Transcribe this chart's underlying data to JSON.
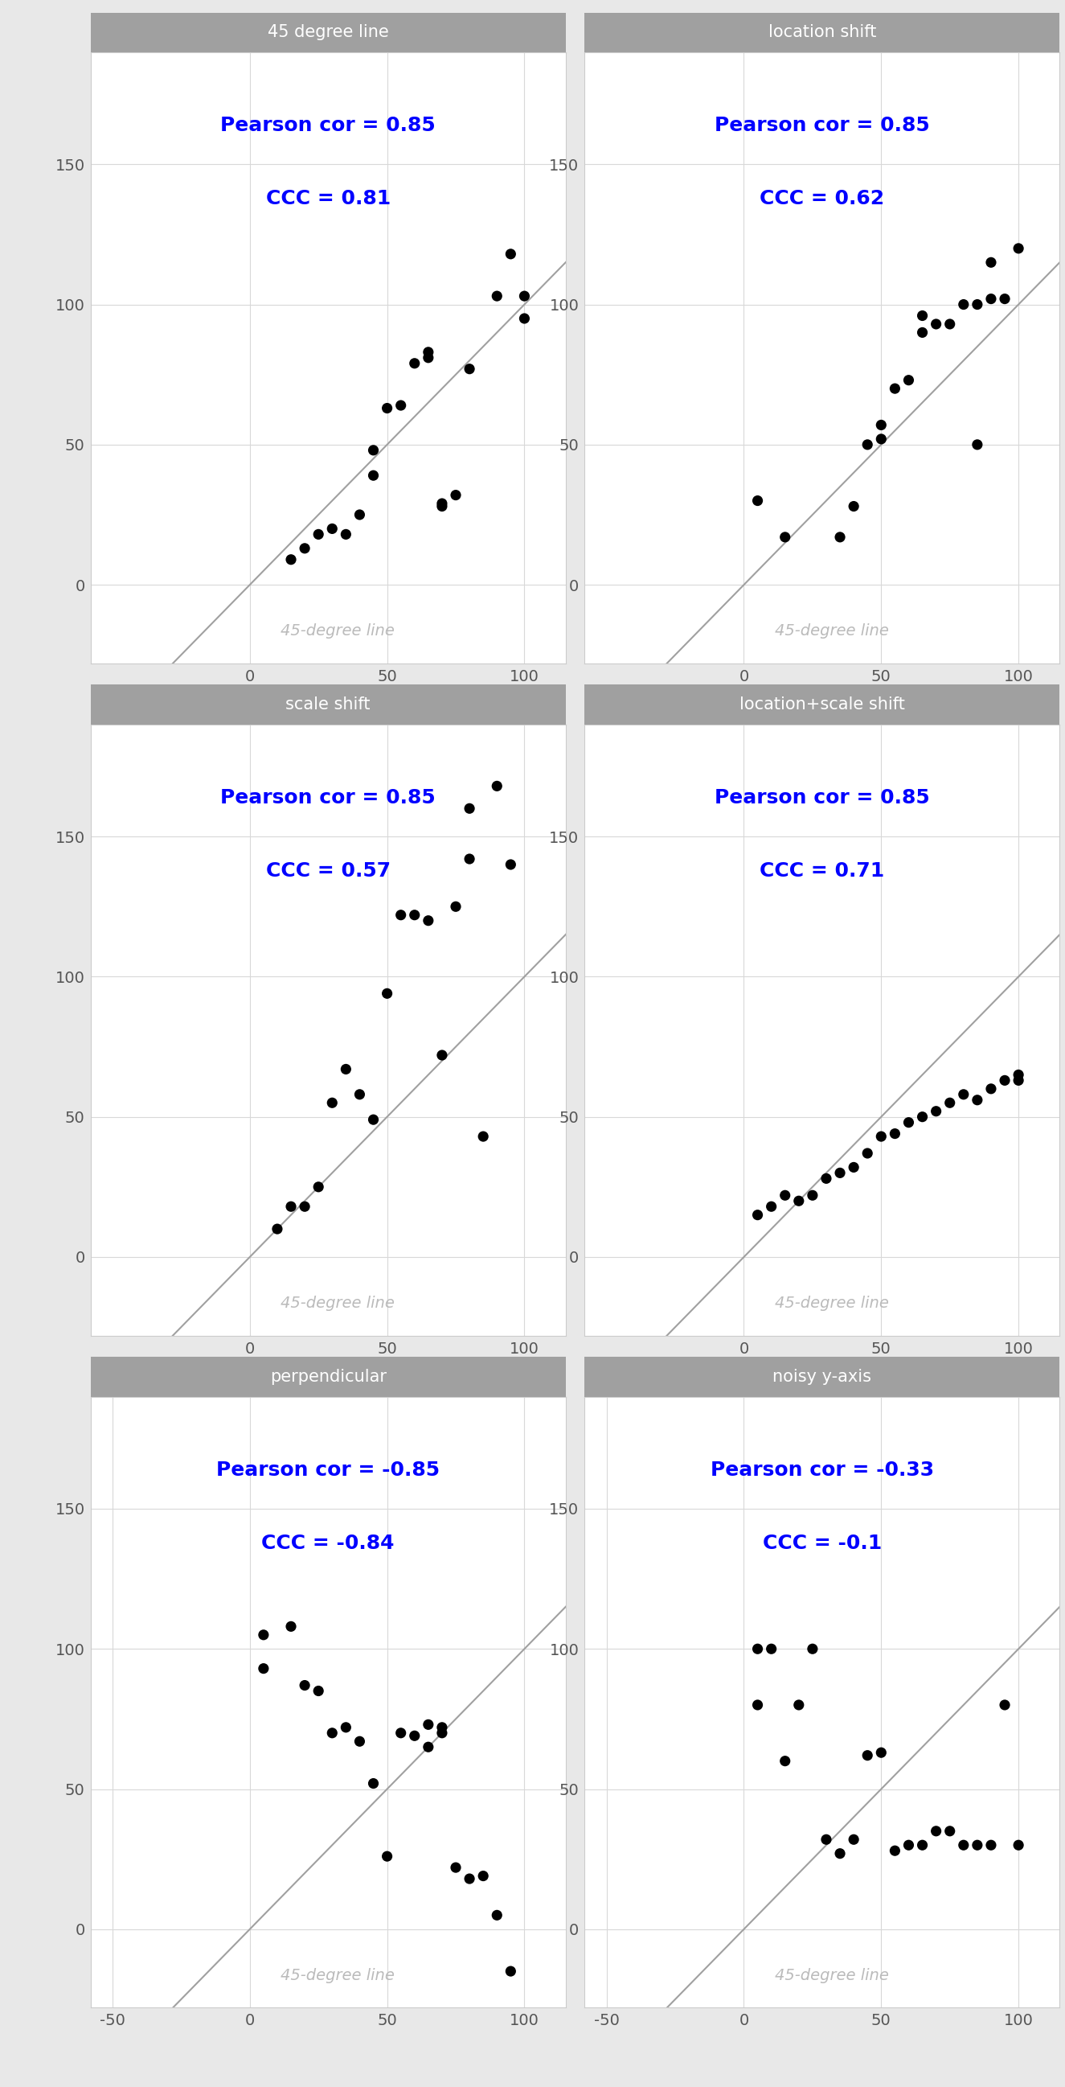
{
  "panels": [
    {
      "title": "45 degree line",
      "pearson": "Pearson cor = 0.85",
      "ccc": "CCC = 0.81",
      "x": [
        15,
        20,
        25,
        30,
        35,
        40,
        45,
        45,
        50,
        55,
        60,
        65,
        65,
        70,
        70,
        75,
        80,
        90,
        95,
        100,
        100
      ],
      "y": [
        9,
        13,
        18,
        20,
        18,
        25,
        48,
        39,
        63,
        64,
        79,
        81,
        83,
        28,
        29,
        32,
        77,
        103,
        118,
        103,
        95
      ],
      "row": 0
    },
    {
      "title": "location shift",
      "pearson": "Pearson cor = 0.85",
      "ccc": "CCC = 0.62",
      "x": [
        5,
        15,
        35,
        40,
        45,
        50,
        50,
        55,
        60,
        65,
        65,
        70,
        75,
        80,
        85,
        85,
        90,
        90,
        95,
        100
      ],
      "y": [
        30,
        17,
        17,
        28,
        50,
        57,
        52,
        70,
        73,
        90,
        96,
        93,
        93,
        100,
        50,
        100,
        102,
        115,
        102,
        120
      ],
      "row": 0
    },
    {
      "title": "scale shift",
      "pearson": "Pearson cor = 0.85",
      "ccc": "CCC = 0.57",
      "x": [
        10,
        15,
        20,
        25,
        30,
        35,
        40,
        45,
        50,
        55,
        60,
        65,
        70,
        75,
        80,
        80,
        85,
        90,
        95
      ],
      "y": [
        10,
        18,
        18,
        25,
        55,
        67,
        58,
        49,
        94,
        122,
        122,
        120,
        72,
        125,
        160,
        142,
        43,
        168,
        140
      ],
      "row": 1
    },
    {
      "title": "location+scale shift",
      "pearson": "Pearson cor = 0.85",
      "ccc": "CCC = 0.71",
      "x": [
        5,
        10,
        15,
        20,
        25,
        30,
        35,
        40,
        45,
        50,
        55,
        60,
        65,
        70,
        75,
        80,
        85,
        90,
        95,
        100,
        100
      ],
      "y": [
        15,
        18,
        22,
        20,
        22,
        28,
        30,
        32,
        37,
        43,
        44,
        48,
        50,
        52,
        55,
        58,
        56,
        60,
        63,
        63,
        65
      ],
      "row": 1
    },
    {
      "title": "perpendicular",
      "pearson": "Pearson cor = -0.85",
      "ccc": "CCC = -0.84",
      "x": [
        5,
        5,
        15,
        20,
        25,
        30,
        35,
        40,
        45,
        50,
        55,
        60,
        65,
        65,
        70,
        70,
        75,
        80,
        85,
        90,
        95
      ],
      "y": [
        93,
        105,
        108,
        87,
        85,
        70,
        72,
        67,
        52,
        26,
        70,
        69,
        65,
        73,
        72,
        70,
        22,
        18,
        19,
        5,
        -15
      ],
      "row": 2
    },
    {
      "title": "noisy y-axis",
      "pearson": "Pearson cor = -0.33",
      "ccc": "CCC = -0.1",
      "x": [
        5,
        5,
        10,
        15,
        20,
        25,
        30,
        35,
        40,
        45,
        50,
        55,
        60,
        65,
        70,
        75,
        80,
        85,
        90,
        95,
        100
      ],
      "y": [
        80,
        100,
        100,
        60,
        80,
        100,
        32,
        27,
        32,
        62,
        63,
        28,
        30,
        30,
        35,
        35,
        30,
        30,
        30,
        80,
        30
      ],
      "row": 2
    }
  ],
  "title_bg": "#a0a0a0",
  "title_fg": "#ffffff",
  "text_color": "#0000ff",
  "line_color": "#a0a0a0",
  "dot_color": "#000000",
  "diag_label": "45-degree line",
  "diag_label_color": "#bbbbbb",
  "grid_color": "#d8d8d8",
  "panel_bg": "#ffffff",
  "outer_bg": "#e8e8e8",
  "spine_color": "#cccccc"
}
